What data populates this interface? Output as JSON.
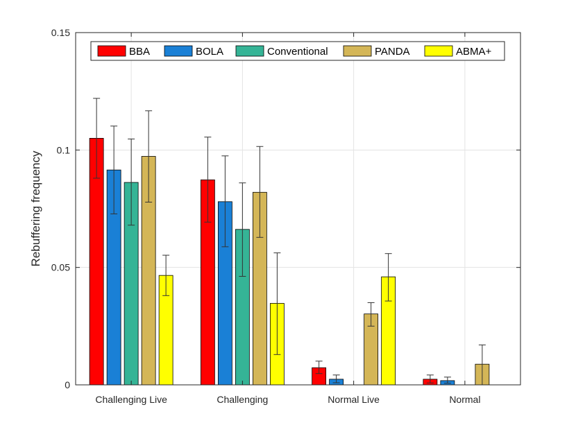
{
  "chart_data": {
    "type": "bar",
    "title": "",
    "xlabel": "",
    "ylabel": "Rebuffering frequency",
    "categories": [
      "Challenging Live",
      "Challenging",
      "Normal Live",
      "Normal"
    ],
    "ylim": [
      0,
      0.15
    ],
    "yticks": [
      0,
      0.05,
      0.1,
      0.15
    ],
    "ytick_labels": [
      "0",
      "0.05",
      "0.1",
      "0.15"
    ],
    "grid": true,
    "legend_position": "top",
    "series": [
      {
        "name": "BBA",
        "color": "#ff0000",
        "values": [
          0.105,
          0.0873,
          0.0073,
          0.0024
        ],
        "err_low": [
          0.088,
          0.0693,
          0.0048,
          0.0008
        ],
        "err_high": [
          0.122,
          0.1055,
          0.0101,
          0.0042
        ]
      },
      {
        "name": "BOLA",
        "color": "#1a80d6",
        "values": [
          0.0915,
          0.078,
          0.0024,
          0.0018
        ],
        "err_low": [
          0.0728,
          0.0588,
          0.0009,
          0.0007
        ],
        "err_high": [
          0.1102,
          0.0975,
          0.0042,
          0.0033
        ]
      },
      {
        "name": "Conventional",
        "color": "#35b496",
        "values": [
          0.0862,
          0.0662,
          0.0,
          0.0
        ],
        "err_low": [
          0.068,
          0.0462,
          0.0,
          0.0
        ],
        "err_high": [
          0.1047,
          0.086,
          0.0,
          0.0
        ]
      },
      {
        "name": "PANDA",
        "color": "#d4b657",
        "values": [
          0.0973,
          0.082,
          0.0302,
          0.0088
        ],
        "err_low": [
          0.0778,
          0.0628,
          0.025,
          0.0
        ],
        "err_high": [
          0.1167,
          0.1015,
          0.035,
          0.017
        ]
      },
      {
        "name": "ABMA+",
        "color": "#ffff00",
        "values": [
          0.0466,
          0.0347,
          0.046,
          0.0
        ],
        "err_low": [
          0.038,
          0.0129,
          0.0357,
          0.0
        ],
        "err_high": [
          0.0552,
          0.0562,
          0.0559,
          0.0
        ]
      }
    ]
  }
}
